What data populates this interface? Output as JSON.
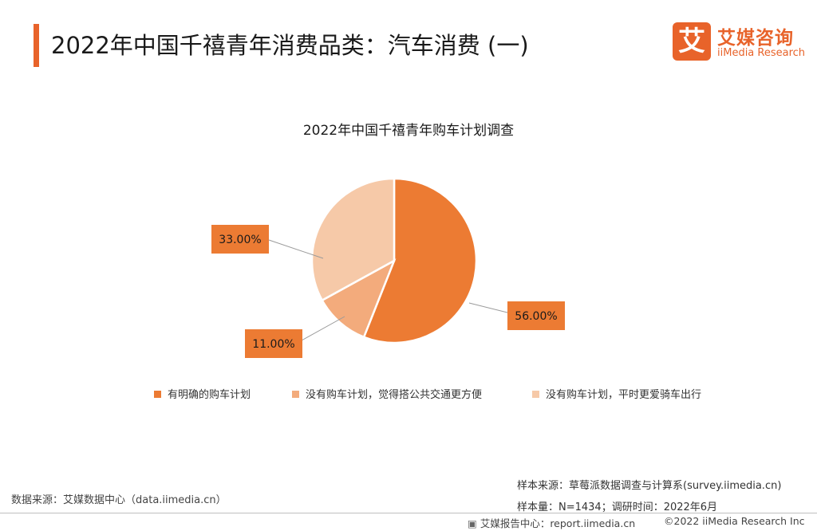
{
  "header": {
    "title": "2022年中国千禧青年消费品类：汽车消费 (一)"
  },
  "logo": {
    "mark": "艾",
    "name_cn": "艾媒咨询",
    "name_en": "iiMedia Research"
  },
  "chart_data": {
    "type": "pie",
    "title": "2022年中国千禧青年购车计划调查",
    "categories": [
      "有明确的购车计划",
      "没有购车计划，觉得搭公共交通更方便",
      "没有购车计划，平时更爱骑车出行"
    ],
    "values": [
      56.0,
      11.0,
      33.0
    ],
    "labels": [
      "56.00%",
      "11.00%",
      "33.00%"
    ],
    "colors": [
      "#ec7b33",
      "#f3ab7c",
      "#f6c9a8"
    ],
    "label_box_color": "#ec7b33",
    "legend_position": "bottom"
  },
  "footer": {
    "data_source": "数据来源：艾媒数据中心（data.iimedia.cn）",
    "sample_source": "样本来源：草莓派数据调查与计算系(survey.iimedia.cn)",
    "sample_size": "样本量：N=1434；调研时间：2022年6月",
    "report_center": "艾媒报告中心：report.iimedia.cn",
    "copyright": "©2022 iiMedia Research Inc"
  }
}
